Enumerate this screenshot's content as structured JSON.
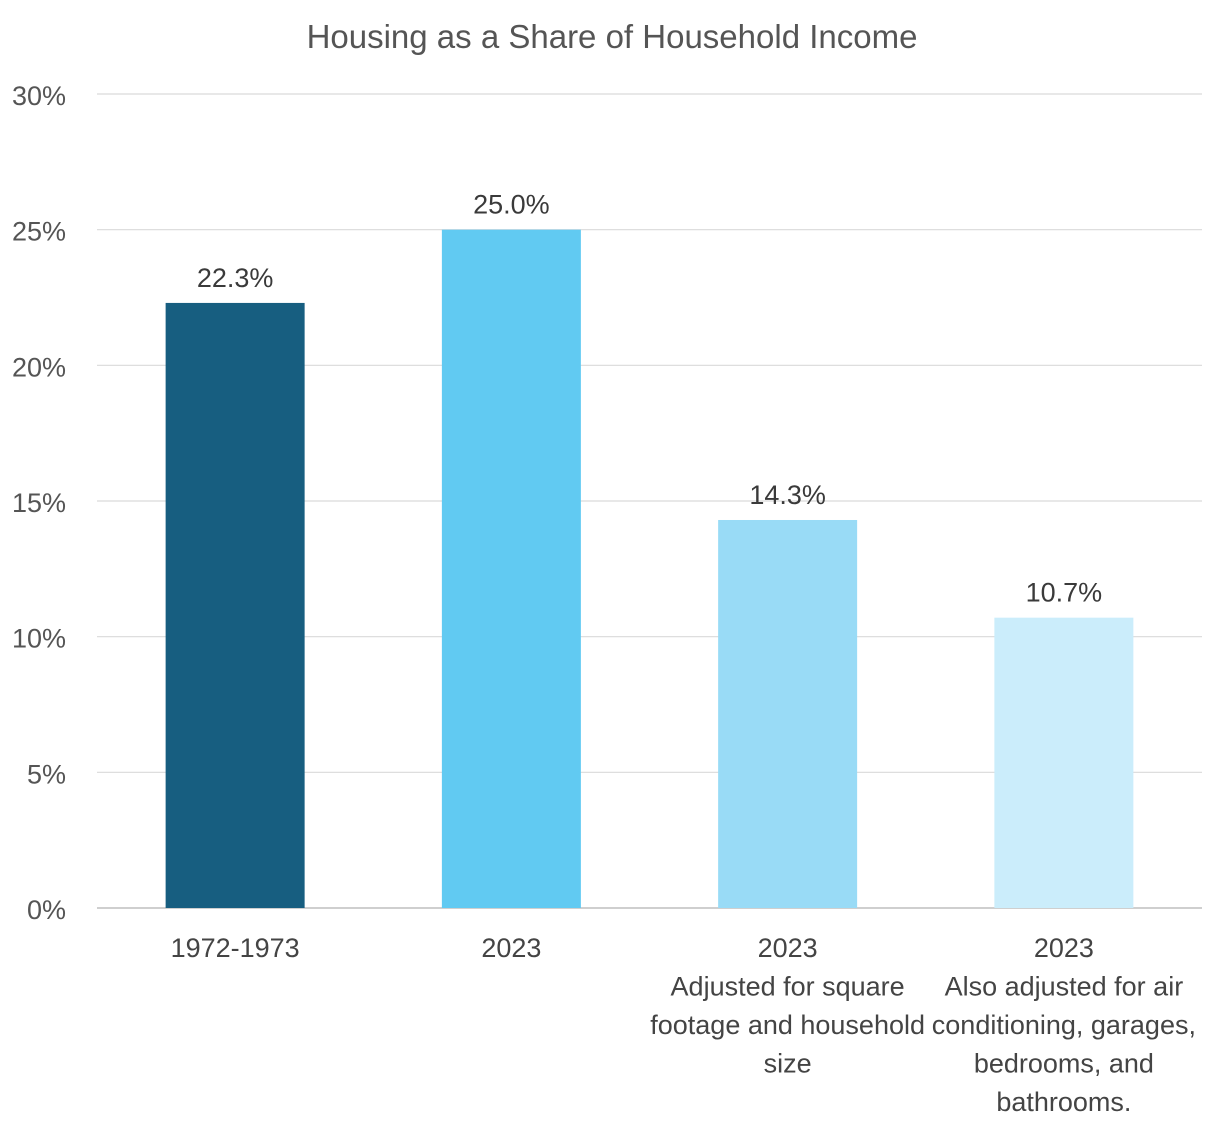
{
  "chart_data": {
    "type": "bar",
    "title": "Housing as a Share of Household Income",
    "xlabel": "",
    "ylabel": "",
    "ylim": [
      0,
      30
    ],
    "yticks": [
      0,
      5,
      10,
      15,
      20,
      25,
      30
    ],
    "ytick_labels": [
      "0%",
      "5%",
      "10%",
      "15%",
      "20%",
      "25%",
      "30%"
    ],
    "grid": true,
    "legend": "none",
    "categories": [
      [
        "1972-1973"
      ],
      [
        "2023"
      ],
      [
        "2023",
        "Adjusted for square",
        "footage and household",
        "size"
      ],
      [
        "2023",
        "Also adjusted for air",
        "conditioning, garages,",
        "bedrooms, and",
        "bathrooms."
      ]
    ],
    "values": [
      22.3,
      25.0,
      14.3,
      10.7
    ],
    "data_labels": [
      "22.3%",
      "25.0%",
      "14.3%",
      "10.7%"
    ],
    "colors": [
      "#175e80",
      "#61caf2",
      "#99dbf6",
      "#cbedfb"
    ],
    "grid_color": "#d9d9d9",
    "axis_color": "#bfbfbf",
    "text_color": "#444444"
  }
}
